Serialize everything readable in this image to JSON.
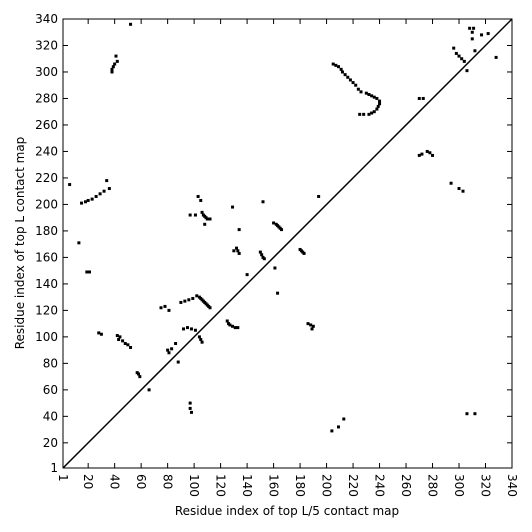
{
  "chart_data": {
    "type": "scatter",
    "xlabel": "Residue index of top L/5 contact map",
    "ylabel": "Residue index of top L contact map",
    "color": "#000000",
    "xlim": [
      1,
      340
    ],
    "ylim": [
      1,
      340
    ],
    "xticks": [
      1,
      20,
      40,
      60,
      80,
      100,
      120,
      140,
      160,
      180,
      200,
      220,
      240,
      260,
      280,
      300,
      320,
      340
    ],
    "yticks": [
      1,
      20,
      40,
      60,
      80,
      100,
      120,
      140,
      160,
      180,
      200,
      220,
      240,
      260,
      280,
      300,
      320,
      340
    ],
    "x": [
      52,
      38,
      38,
      39,
      40,
      42,
      41,
      6,
      13,
      15,
      18,
      20,
      23,
      26,
      29,
      32,
      36,
      34,
      19,
      21,
      28,
      30,
      42,
      44,
      43,
      46,
      48,
      50,
      52,
      58,
      59,
      57,
      66,
      75,
      78,
      81,
      80,
      81,
      86,
      83,
      90,
      93,
      96,
      99,
      102,
      104,
      105,
      106,
      107,
      108,
      109,
      110,
      111,
      112,
      92,
      95,
      98,
      101,
      104,
      105,
      106,
      88,
      97,
      101,
      103,
      105,
      106,
      107,
      108,
      109,
      110,
      108,
      112,
      97,
      97,
      98,
      125,
      126,
      127,
      129,
      131,
      133,
      130,
      132,
      133,
      134,
      134,
      129,
      140,
      150,
      151,
      152,
      153,
      152,
      160,
      162,
      163,
      164,
      165,
      166,
      161,
      163,
      180,
      181,
      182,
      183,
      186,
      188,
      190,
      189,
      194,
      204,
      209,
      213,
      205,
      207,
      209,
      211,
      212,
      214,
      216,
      218,
      220,
      222,
      224,
      226,
      230,
      232,
      234,
      236,
      238,
      240,
      240,
      239,
      238,
      236,
      234,
      232,
      228,
      225,
      270,
      273,
      270,
      272,
      276,
      278,
      280,
      296,
      298,
      300,
      302,
      304,
      306,
      294,
      300,
      303,
      308,
      311,
      310,
      310,
      312,
      317,
      322,
      328,
      306,
      312
    ],
    "values": [
      336,
      300,
      302,
      304,
      306,
      308,
      312,
      215,
      171,
      201,
      202,
      203,
      204,
      206,
      208,
      210,
      212,
      218,
      149,
      149,
      103,
      102,
      101,
      100,
      98,
      97,
      95,
      94,
      92,
      72,
      70,
      73,
      60,
      122,
      123,
      120,
      90,
      88,
      95,
      91,
      126,
      127,
      128,
      129,
      131,
      130,
      129,
      128,
      127,
      126,
      125,
      124,
      123,
      122,
      106,
      107,
      106,
      105,
      100,
      98,
      96,
      81,
      192,
      192,
      206,
      203,
      194,
      192,
      191,
      190,
      189,
      185,
      189,
      50,
      46,
      43,
      112,
      110,
      109,
      108,
      107,
      107,
      165,
      167,
      165,
      163,
      181,
      198,
      147,
      164,
      162,
      160,
      159,
      202,
      186,
      185,
      184,
      183,
      182,
      181,
      152,
      133,
      166,
      165,
      164,
      163,
      110,
      109,
      108,
      106,
      206,
      29,
      32,
      38,
      306,
      305,
      304,
      302,
      300,
      298,
      296,
      294,
      292,
      290,
      287,
      285,
      284,
      283,
      282,
      281,
      280,
      278,
      276,
      274,
      272,
      270,
      269,
      268,
      268,
      268,
      280,
      280,
      237,
      238,
      240,
      239,
      237,
      318,
      314,
      312,
      310,
      308,
      301,
      216,
      212,
      210,
      333,
      333,
      330,
      325,
      316,
      328,
      329,
      311,
      42,
      42
    ]
  }
}
